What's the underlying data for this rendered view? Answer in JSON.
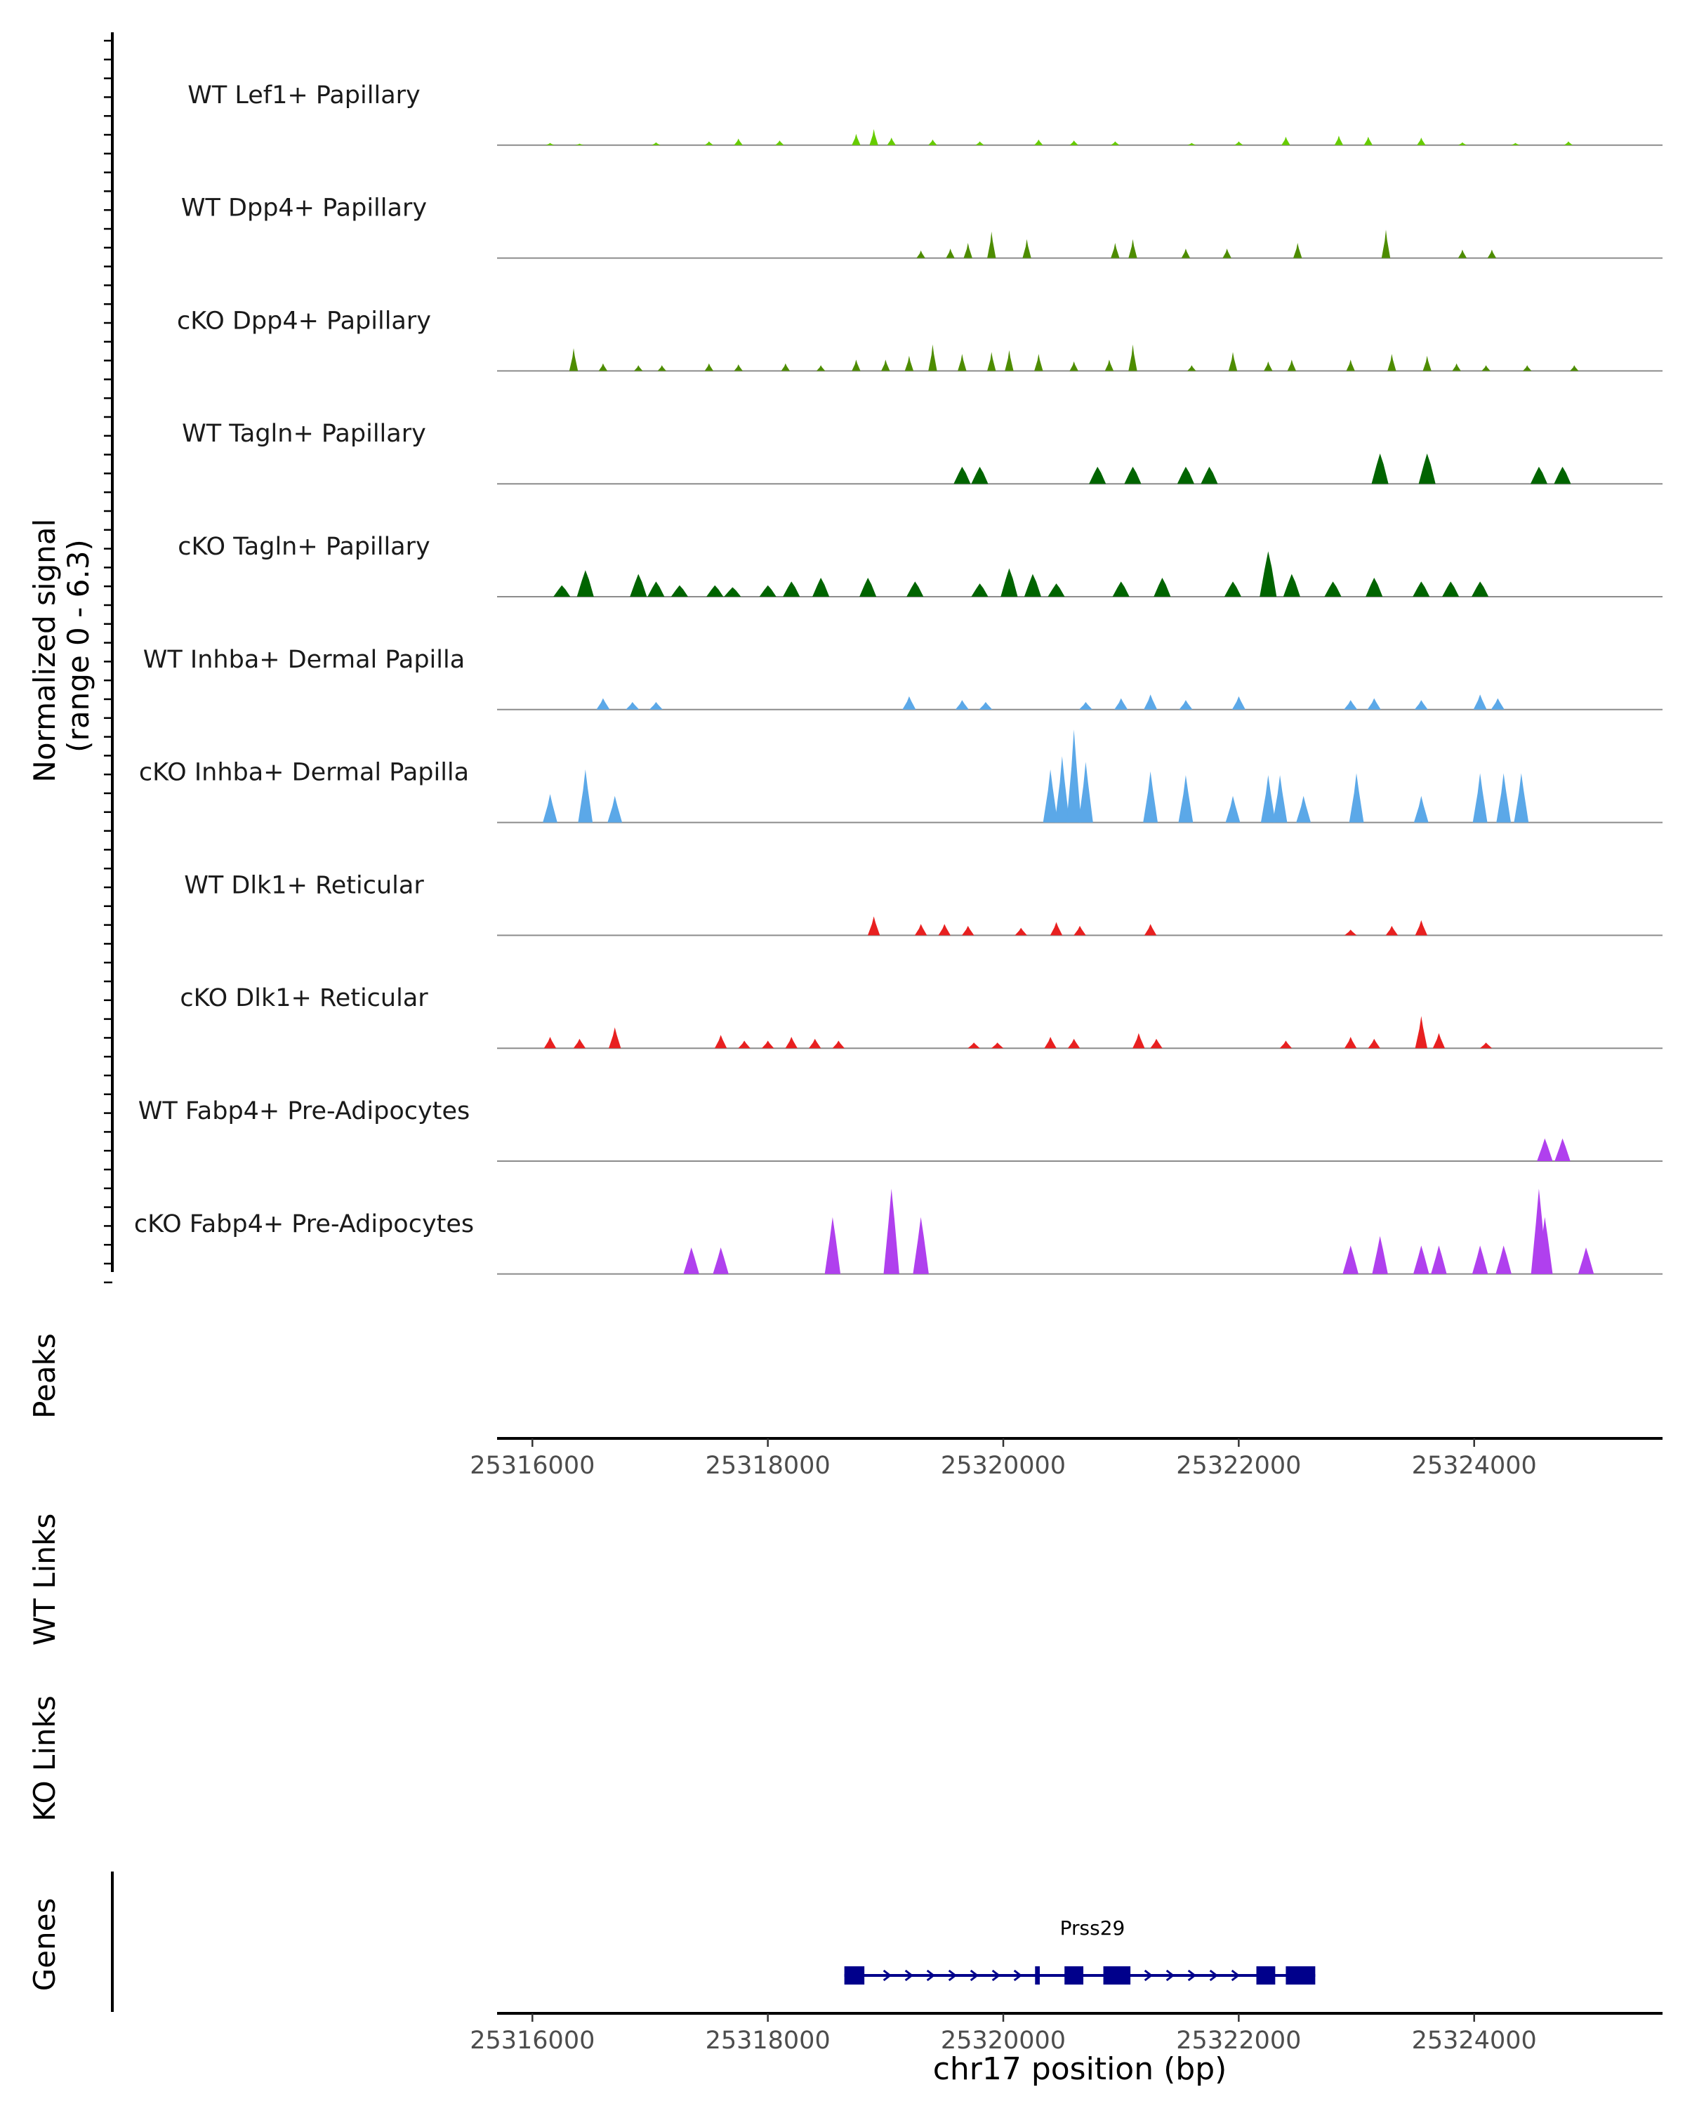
{
  "chart_data": {
    "type": "area",
    "title": "",
    "chromosome": "chr17",
    "xlabel": "chr17 position (bp)",
    "xlim": [
      25315700,
      25325600
    ],
    "x_ticks": [
      25316000,
      25318000,
      25320000,
      25322000,
      25324000
    ],
    "x_tick_labels": [
      "25316000",
      "25318000",
      "25320000",
      "25322000",
      "25324000"
    ],
    "signal_axis": {
      "label_line1": "Normalized signal",
      "label_line2": "(range 0 - 6.3)",
      "ylim": [
        0,
        6.3
      ]
    },
    "tracks": [
      {
        "name": "WT Lef1+ Papillary",
        "color": "#66cc00",
        "bin_width": 50,
        "points": [
          [
            25316150,
            0.12
          ],
          [
            25316400,
            0.08
          ],
          [
            25317050,
            0.15
          ],
          [
            25317500,
            0.2
          ],
          [
            25317750,
            0.35
          ],
          [
            25318100,
            0.25
          ],
          [
            25318750,
            0.6
          ],
          [
            25318900,
            0.85
          ],
          [
            25319050,
            0.4
          ],
          [
            25319400,
            0.3
          ],
          [
            25319800,
            0.2
          ],
          [
            25320300,
            0.3
          ],
          [
            25320600,
            0.25
          ],
          [
            25320950,
            0.2
          ],
          [
            25321600,
            0.12
          ],
          [
            25322000,
            0.2
          ],
          [
            25322400,
            0.45
          ],
          [
            25322850,
            0.5
          ],
          [
            25323100,
            0.45
          ],
          [
            25323550,
            0.4
          ],
          [
            25323900,
            0.15
          ],
          [
            25324350,
            0.12
          ],
          [
            25324800,
            0.2
          ]
        ]
      },
      {
        "name": "WT Dpp4+ Papillary",
        "color": "#4d8c00",
        "bin_width": 50,
        "points": [
          [
            25319300,
            0.4
          ],
          [
            25319550,
            0.5
          ],
          [
            25319700,
            0.8
          ],
          [
            25319900,
            1.4
          ],
          [
            25320200,
            1.0
          ],
          [
            25320950,
            0.8
          ],
          [
            25321100,
            1.0
          ],
          [
            25321550,
            0.5
          ],
          [
            25321900,
            0.5
          ],
          [
            25322500,
            0.8
          ],
          [
            25323250,
            1.5
          ],
          [
            25323900,
            0.45
          ],
          [
            25324150,
            0.45
          ]
        ]
      },
      {
        "name": "cKO Dpp4+ Papillary",
        "color": "#4d8c00",
        "bin_width": 50,
        "points": [
          [
            25316350,
            1.2
          ],
          [
            25316600,
            0.4
          ],
          [
            25316900,
            0.3
          ],
          [
            25317100,
            0.3
          ],
          [
            25317500,
            0.4
          ],
          [
            25317750,
            0.35
          ],
          [
            25318150,
            0.4
          ],
          [
            25318450,
            0.3
          ],
          [
            25318750,
            0.6
          ],
          [
            25319000,
            0.6
          ],
          [
            25319200,
            0.8
          ],
          [
            25319400,
            1.4
          ],
          [
            25319650,
            0.9
          ],
          [
            25319900,
            1.0
          ],
          [
            25320050,
            1.1
          ],
          [
            25320300,
            0.9
          ],
          [
            25320600,
            0.5
          ],
          [
            25320900,
            0.6
          ],
          [
            25321100,
            1.4
          ],
          [
            25321600,
            0.3
          ],
          [
            25321950,
            1.0
          ],
          [
            25322250,
            0.5
          ],
          [
            25322450,
            0.6
          ],
          [
            25322950,
            0.6
          ],
          [
            25323300,
            0.9
          ],
          [
            25323600,
            0.8
          ],
          [
            25323850,
            0.4
          ],
          [
            25324100,
            0.3
          ],
          [
            25324450,
            0.3
          ],
          [
            25324850,
            0.3
          ]
        ]
      },
      {
        "name": "WT Tagln+ Papillary",
        "color": "#006400",
        "bin_width": 120,
        "points": [
          [
            25319650,
            0.9
          ],
          [
            25319800,
            0.9
          ],
          [
            25320800,
            0.9
          ],
          [
            25321100,
            0.9
          ],
          [
            25321550,
            0.9
          ],
          [
            25321750,
            0.9
          ],
          [
            25323200,
            1.6
          ],
          [
            25323600,
            1.6
          ],
          [
            25324550,
            0.9
          ],
          [
            25324750,
            0.9
          ]
        ]
      },
      {
        "name": "cKO Tagln+ Papillary",
        "color": "#006400",
        "bin_width": 120,
        "points": [
          [
            25316250,
            0.6
          ],
          [
            25316450,
            1.4
          ],
          [
            25316900,
            1.2
          ],
          [
            25317050,
            0.8
          ],
          [
            25317250,
            0.6
          ],
          [
            25317550,
            0.6
          ],
          [
            25317700,
            0.5
          ],
          [
            25318000,
            0.6
          ],
          [
            25318200,
            0.8
          ],
          [
            25318450,
            1.0
          ],
          [
            25318850,
            1.0
          ],
          [
            25319250,
            0.8
          ],
          [
            25319800,
            0.7
          ],
          [
            25320050,
            1.5
          ],
          [
            25320250,
            1.2
          ],
          [
            25320450,
            0.7
          ],
          [
            25321000,
            0.8
          ],
          [
            25321350,
            1.0
          ],
          [
            25321950,
            0.8
          ],
          [
            25322250,
            2.4
          ],
          [
            25322450,
            1.2
          ],
          [
            25322800,
            0.8
          ],
          [
            25323150,
            1.0
          ],
          [
            25323550,
            0.8
          ],
          [
            25323800,
            0.8
          ],
          [
            25324050,
            0.8
          ]
        ]
      },
      {
        "name": "WT Inhba+ Dermal Papilla",
        "color": "#5ba8e8",
        "bin_width": 90,
        "points": [
          [
            25316600,
            0.6
          ],
          [
            25316850,
            0.4
          ],
          [
            25317050,
            0.4
          ],
          [
            25319200,
            0.7
          ],
          [
            25319650,
            0.5
          ],
          [
            25319850,
            0.4
          ],
          [
            25320700,
            0.4
          ],
          [
            25321000,
            0.6
          ],
          [
            25321250,
            0.8
          ],
          [
            25321550,
            0.5
          ],
          [
            25322000,
            0.7
          ],
          [
            25322950,
            0.5
          ],
          [
            25323150,
            0.6
          ],
          [
            25323550,
            0.5
          ],
          [
            25324050,
            0.8
          ],
          [
            25324200,
            0.6
          ]
        ]
      },
      {
        "name": "cKO Inhba+ Dermal Papilla",
        "color": "#5ba8e8",
        "bin_width": 100,
        "points": [
          [
            25316150,
            1.5
          ],
          [
            25316450,
            2.8
          ],
          [
            25316700,
            1.4
          ],
          [
            25320400,
            2.8
          ],
          [
            25320500,
            3.5
          ],
          [
            25320600,
            4.9
          ],
          [
            25320700,
            3.2
          ],
          [
            25321250,
            2.7
          ],
          [
            25321550,
            2.5
          ],
          [
            25321950,
            1.4
          ],
          [
            25322250,
            2.5
          ],
          [
            25322350,
            2.5
          ],
          [
            25322550,
            1.4
          ],
          [
            25323000,
            2.6
          ],
          [
            25323550,
            1.4
          ],
          [
            25324050,
            2.6
          ],
          [
            25324250,
            2.6
          ],
          [
            25324400,
            2.6
          ]
        ]
      },
      {
        "name": "WT Dlk1+ Reticular",
        "color": "#e82020",
        "bin_width": 80,
        "points": [
          [
            25318900,
            1.0
          ],
          [
            25319300,
            0.6
          ],
          [
            25319500,
            0.6
          ],
          [
            25319700,
            0.5
          ],
          [
            25320150,
            0.4
          ],
          [
            25320450,
            0.7
          ],
          [
            25320650,
            0.5
          ],
          [
            25321250,
            0.6
          ],
          [
            25322950,
            0.3
          ],
          [
            25323300,
            0.5
          ],
          [
            25323550,
            0.8
          ]
        ]
      },
      {
        "name": "cKO Dlk1+ Reticular",
        "color": "#e82020",
        "bin_width": 80,
        "points": [
          [
            25316150,
            0.6
          ],
          [
            25316400,
            0.5
          ],
          [
            25316700,
            1.1
          ],
          [
            25317600,
            0.7
          ],
          [
            25317800,
            0.4
          ],
          [
            25318000,
            0.4
          ],
          [
            25318200,
            0.6
          ],
          [
            25318400,
            0.5
          ],
          [
            25318600,
            0.4
          ],
          [
            25319750,
            0.3
          ],
          [
            25319950,
            0.3
          ],
          [
            25320400,
            0.6
          ],
          [
            25320600,
            0.5
          ],
          [
            25321150,
            0.8
          ],
          [
            25321300,
            0.5
          ],
          [
            25322400,
            0.4
          ],
          [
            25322950,
            0.6
          ],
          [
            25323150,
            0.5
          ],
          [
            25323550,
            1.7
          ],
          [
            25323700,
            0.8
          ],
          [
            25324100,
            0.3
          ]
        ]
      },
      {
        "name": "WT Fabp4+ Pre-Adipocytes",
        "color": "#b040ee",
        "bin_width": 110,
        "points": [
          [
            25324600,
            1.2
          ],
          [
            25324750,
            1.2
          ]
        ]
      },
      {
        "name": "cKO Fabp4+ Pre-Adipocytes",
        "color": "#b040ee",
        "bin_width": 110,
        "points": [
          [
            25317350,
            1.4
          ],
          [
            25317600,
            1.4
          ],
          [
            25318550,
            3.0
          ],
          [
            25319050,
            4.5
          ],
          [
            25319300,
            3.0
          ],
          [
            25322950,
            1.5
          ],
          [
            25323200,
            2.0
          ],
          [
            25323550,
            1.5
          ],
          [
            25323700,
            1.5
          ],
          [
            25324050,
            1.5
          ],
          [
            25324250,
            1.5
          ],
          [
            25324550,
            4.5
          ],
          [
            25324600,
            3.0
          ],
          [
            25324950,
            1.4
          ]
        ]
      }
    ],
    "peaks_label": "Peaks",
    "wt_links_label": "WT Links",
    "ko_links_label": "KO Links",
    "genes_label": "Genes",
    "genes": [
      {
        "name": "Prss29",
        "start": 25318650,
        "end": 25322650,
        "strand": "+",
        "exons": [
          [
            25318650,
            25318820
          ],
          [
            25320270,
            25320310
          ],
          [
            25320520,
            25320680
          ],
          [
            25320850,
            25321080
          ],
          [
            25322150,
            25322310
          ],
          [
            25322400,
            25322650
          ]
        ]
      }
    ],
    "colors": {
      "axis": "#000000",
      "baseline": "#8c8c8c",
      "gene": "#00008b",
      "tick_label": "#4d4d4d"
    }
  }
}
